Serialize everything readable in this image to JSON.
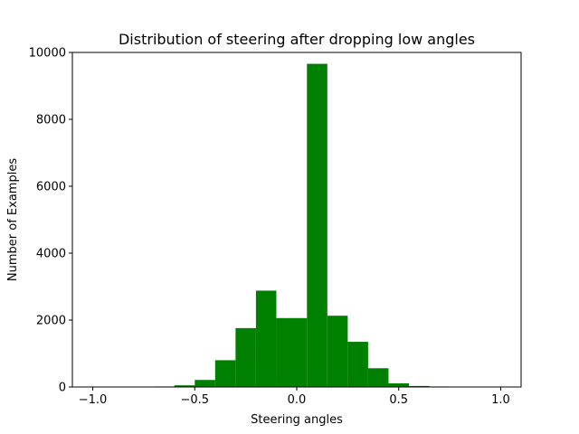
{
  "chart_data": {
    "type": "bar",
    "title": "Distribution of steering after dropping low angles",
    "xlabel": "Steering angles",
    "ylabel": "Number of Examples",
    "xlim": [
      -1.1,
      1.1
    ],
    "ylim": [
      0,
      10000
    ],
    "bar_color": "#008000",
    "bin_width": 0.1,
    "bins": [
      {
        "x0": -0.7,
        "x1": -0.6,
        "value": 15
      },
      {
        "x0": -0.6,
        "x1": -0.5,
        "value": 50
      },
      {
        "x0": -0.5,
        "x1": -0.4,
        "value": 210
      },
      {
        "x0": -0.4,
        "x1": -0.3,
        "value": 800
      },
      {
        "x0": -0.3,
        "x1": -0.2,
        "value": 1760
      },
      {
        "x0": -0.2,
        "x1": -0.1,
        "value": 2880
      },
      {
        "x0": -0.1,
        "x1": 0.0,
        "value": 2060
      },
      {
        "x0": 0.0,
        "x1": 0.05,
        "value": 2060
      },
      {
        "x0": 0.05,
        "x1": 0.15,
        "value": 9660
      },
      {
        "x0": 0.15,
        "x1": 0.25,
        "value": 2130
      },
      {
        "x0": 0.25,
        "x1": 0.35,
        "value": 1350
      },
      {
        "x0": 0.35,
        "x1": 0.45,
        "value": 560
      },
      {
        "x0": 0.45,
        "x1": 0.55,
        "value": 110
      },
      {
        "x0": 0.55,
        "x1": 0.65,
        "value": 30
      },
      {
        "x0": 0.65,
        "x1": 0.75,
        "value": 15
      }
    ],
    "x_ticks": [
      {
        "value": -1.0,
        "label": "−1.0"
      },
      {
        "value": -0.5,
        "label": "−0.5"
      },
      {
        "value": 0.0,
        "label": "0.0"
      },
      {
        "value": 0.5,
        "label": "0.5"
      },
      {
        "value": 1.0,
        "label": "1.0"
      }
    ],
    "y_ticks": [
      {
        "value": 0,
        "label": "0"
      },
      {
        "value": 2000,
        "label": "2000"
      },
      {
        "value": 4000,
        "label": "4000"
      },
      {
        "value": 6000,
        "label": "6000"
      },
      {
        "value": 8000,
        "label": "8000"
      },
      {
        "value": 10000,
        "label": "10000"
      }
    ],
    "grid": false,
    "legend": "none"
  }
}
